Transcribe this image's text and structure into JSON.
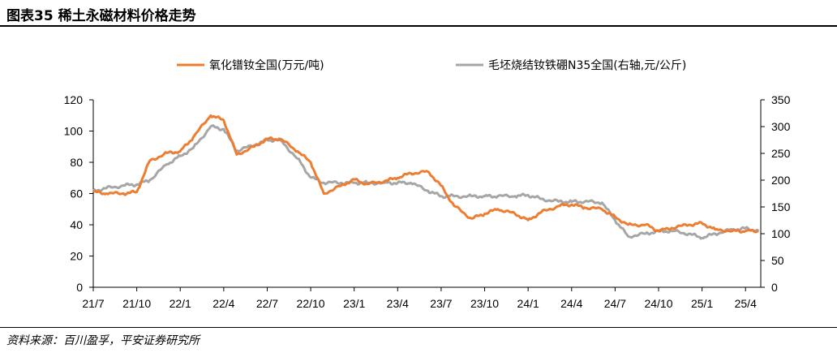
{
  "header": {
    "title": "图表35   稀土永磁材料价格走势"
  },
  "source": "资料来源：百川盈孚，平安证券研究所",
  "chart_data": {
    "type": "line",
    "title": "",
    "x_tick_labels": [
      "21/7",
      "21/10",
      "22/1",
      "22/4",
      "22/7",
      "22/10",
      "23/1",
      "23/4",
      "23/7",
      "23/10",
      "24/1",
      "24/4",
      "24/7",
      "24/10",
      "25/1",
      "25/4"
    ],
    "y_left": {
      "min": 0,
      "max": 120,
      "ticks": [
        0,
        20,
        40,
        60,
        80,
        100,
        120
      ]
    },
    "y_right": {
      "min": 0,
      "max": 350,
      "ticks": [
        0,
        50,
        100,
        150,
        200,
        250,
        300,
        350
      ]
    },
    "legend_position": "top",
    "grid": false,
    "series": [
      {
        "name": "氧化镨钕全国(万元/吨)",
        "axis": "left",
        "color": "#ED7D31",
        "x": [
          0,
          0.3,
          0.7,
          1,
          1.3,
          1.7,
          2,
          2.3,
          2.7,
          3,
          3.3,
          3.7,
          4,
          4.3,
          4.7,
          5,
          5.3,
          5.7,
          6,
          6.3,
          6.7,
          7,
          7.3,
          7.7,
          8,
          8.3,
          8.7,
          9,
          9.3,
          9.7,
          10,
          10.3,
          10.7,
          11,
          11.3,
          11.7,
          12,
          12.3,
          12.7,
          13,
          13.3,
          13.7,
          14,
          14.3,
          14.7,
          15,
          15.3
        ],
        "y": [
          61,
          60,
          60,
          61,
          81,
          86,
          87,
          96,
          110,
          107,
          85,
          90,
          95,
          95,
          87,
          80,
          60,
          65,
          69,
          66,
          68,
          70,
          73,
          74,
          65,
          52,
          44,
          47,
          50,
          47,
          43,
          48,
          52,
          53,
          51,
          50,
          45,
          40,
          40,
          36,
          38,
          40,
          41,
          37,
          36,
          36,
          36
        ],
        "y_extra_note": ""
      },
      {
        "name": "毛坯烧结钕铁硼N35全国(右轴,元/公斤)",
        "axis": "right",
        "color": "#A6A6A6",
        "x": [
          0,
          0.3,
          0.7,
          1,
          1.3,
          1.7,
          2,
          2.3,
          2.7,
          3,
          3.3,
          3.7,
          4,
          4.3,
          4.7,
          5,
          5.3,
          5.7,
          6,
          6.3,
          6.7,
          7,
          7.3,
          7.7,
          8,
          8.3,
          8.7,
          9,
          9.3,
          9.7,
          10,
          10.3,
          10.7,
          11,
          11.3,
          11.7,
          12,
          12.3,
          12.7,
          13,
          13.3,
          13.7,
          14,
          14.3,
          14.7,
          15,
          15.3
        ],
        "y": [
          180,
          185,
          190,
          192,
          200,
          230,
          245,
          260,
          300,
          295,
          255,
          265,
          275,
          275,
          240,
          205,
          195,
          195,
          195,
          195,
          195,
          195,
          195,
          180,
          170,
          170,
          170,
          170,
          170,
          170,
          172,
          165,
          160,
          160,
          160,
          158,
          125,
          95,
          100,
          105,
          105,
          100,
          92,
          100,
          108,
          110,
          105
        ]
      }
    ]
  }
}
